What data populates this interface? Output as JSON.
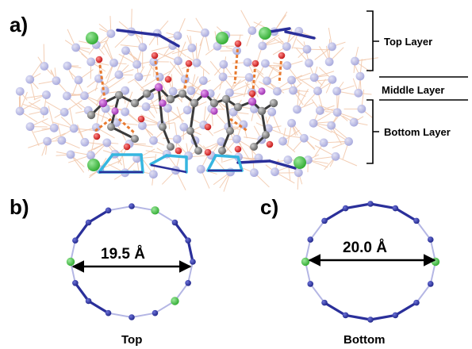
{
  "panels": {
    "a": {
      "label": "a)"
    },
    "b": {
      "label": "b)",
      "distance": "19.5 Å",
      "caption": "Top"
    },
    "c": {
      "label": "c)",
      "distance": "20.0 Å",
      "caption": "Bottom"
    }
  },
  "layers": {
    "top": "Top Layer",
    "middle": "Middle Layer",
    "bottom": "Bottom Layer"
  },
  "colors": {
    "lattice": "#f2c9ad",
    "node": "#a9abe0",
    "chloride": "#4cc34c",
    "carbon": "#7a7a7a",
    "oxygen": "#d42020",
    "nitrogen": "#b040c0",
    "hbond": "#e87a30",
    "ring_strong": "#2a2f9a",
    "ring_light": "#b4b6e4",
    "cyan_bond": "#36b6e0"
  }
}
